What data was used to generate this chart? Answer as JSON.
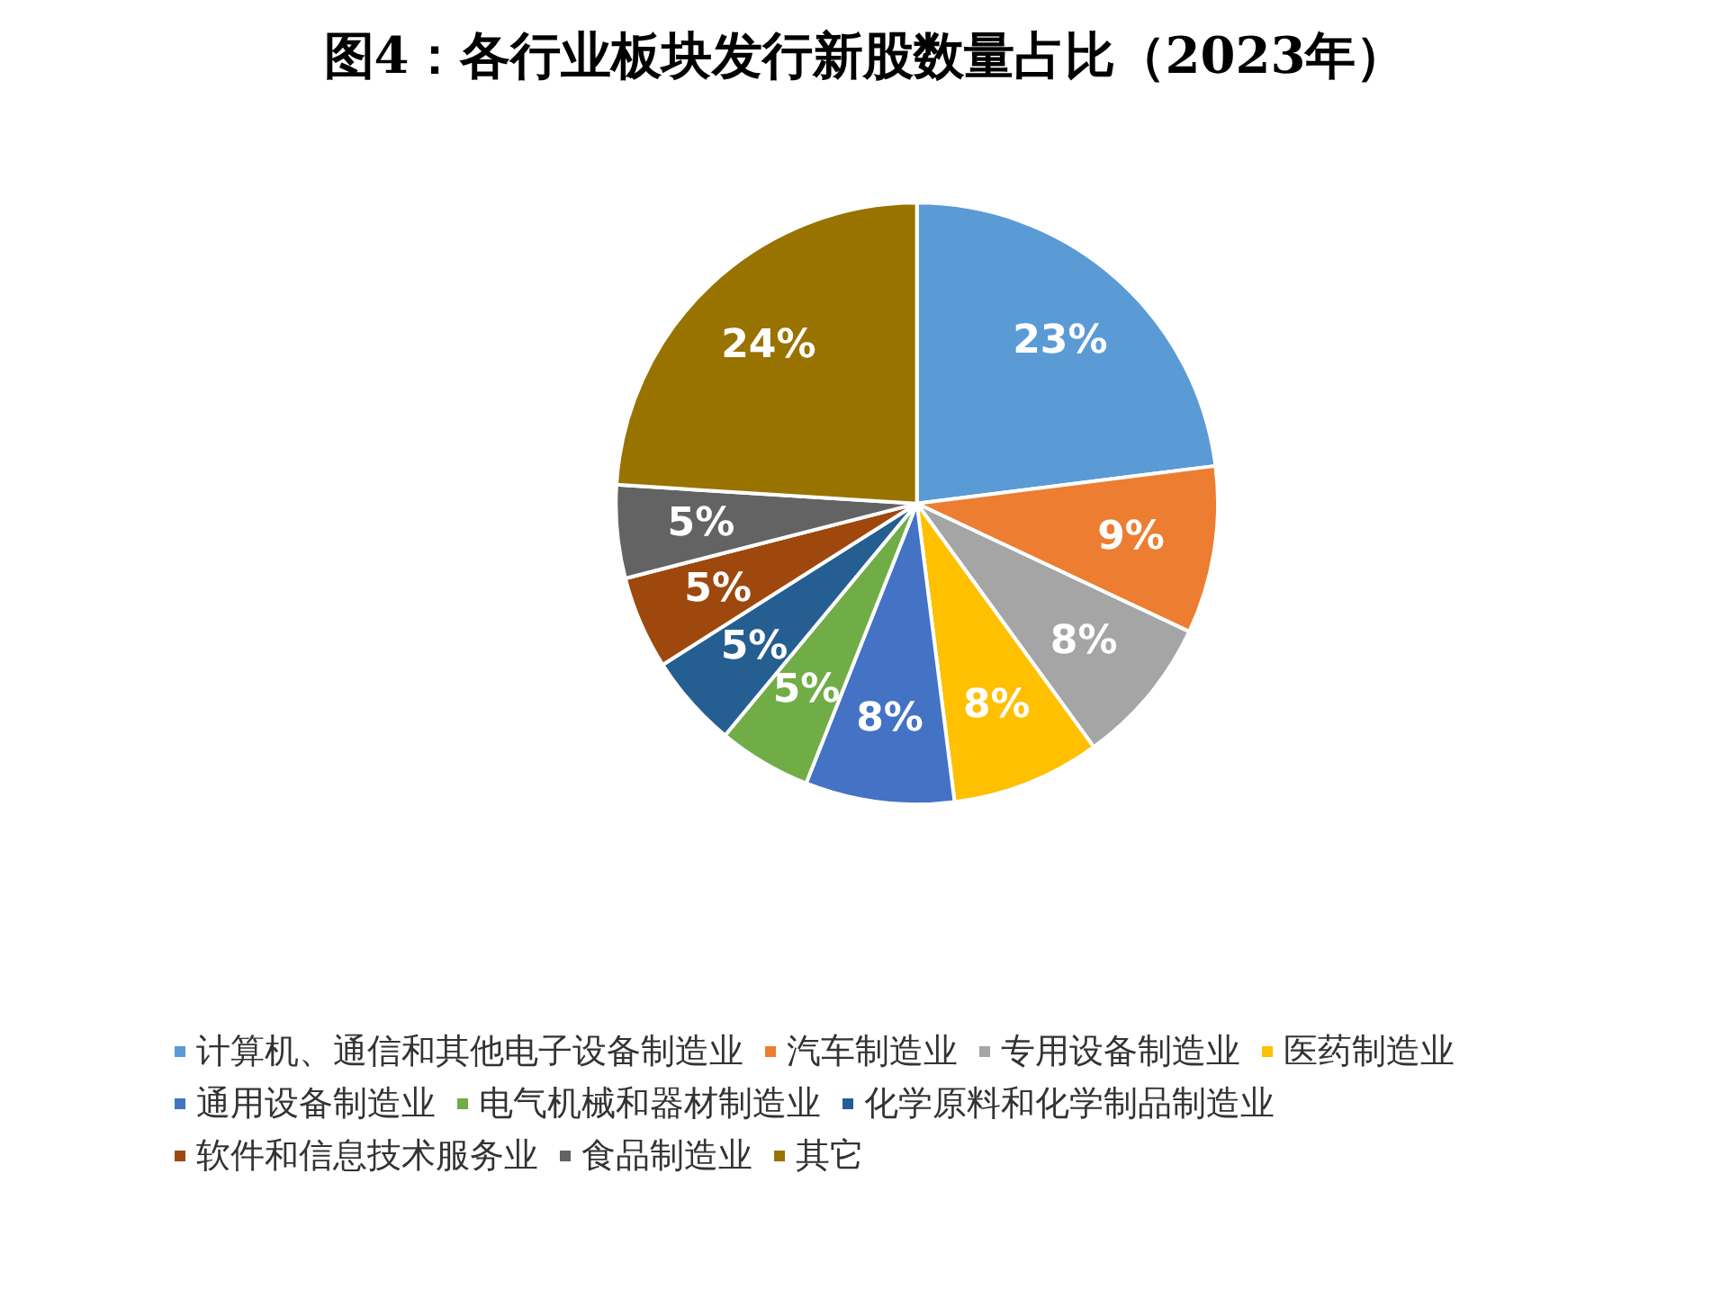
{
  "chart_data": {
    "type": "pie",
    "title": "图4：各行业板块发行新股数量占比（2023年）",
    "categories": [
      "计算机、通信和其他电子设备制造业",
      "汽车制造业",
      "专用设备制造业",
      "医药制造业",
      "通用设备制造业",
      "电气机械和器材制造业",
      "化学原料和化学制品制造业",
      "软件和信息技术服务业",
      "食品制造业",
      "其它"
    ],
    "values": [
      23,
      9,
      8,
      8,
      8,
      5,
      5,
      5,
      5,
      24
    ],
    "value_labels": [
      "23%",
      "9%",
      "8%",
      "8%",
      "8%",
      "5%",
      "5%",
      "5%",
      "5%",
      "24%"
    ],
    "colors": [
      "#5b9bd5",
      "#ed7d31",
      "#a5a5a5",
      "#ffc000",
      "#4472c4",
      "#70ad47",
      "#255e91",
      "#9e480e",
      "#636363",
      "#997300"
    ],
    "legend": "bottom"
  }
}
